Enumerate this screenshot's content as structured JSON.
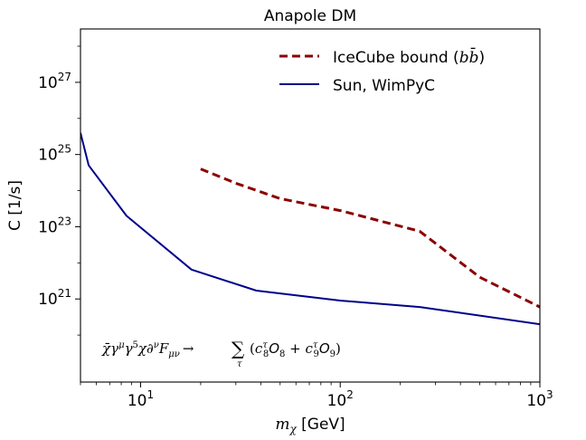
{
  "chart_data": {
    "type": "line",
    "title": "Anapole DM",
    "xlabel": {
      "main": "m",
      "sub": "χ",
      "unit": " [GeV]"
    },
    "ylabel": "C [1/s]",
    "xscale": "log",
    "yscale": "log",
    "xlim": [
      5,
      1000
    ],
    "ylim": [
      5e+18,
      3e+28
    ],
    "grid": false,
    "legend_position": "top-right",
    "x_ticks": [
      {
        "value": 10,
        "base": "10",
        "exp": "1"
      },
      {
        "value": 100,
        "base": "10",
        "exp": "2"
      },
      {
        "value": 1000,
        "base": "10",
        "exp": "3"
      }
    ],
    "y_ticks": [
      {
        "value": 1e+21,
        "base": "10",
        "exp": "21"
      },
      {
        "value": 1e+23,
        "base": "10",
        "exp": "23"
      },
      {
        "value": 1e+25,
        "base": "10",
        "exp": "25"
      },
      {
        "value": 1e+27,
        "base": "10",
        "exp": "27"
      }
    ],
    "series": [
      {
        "name": "IceCube bound (bb̄)",
        "legend_text": "IceCube bound (",
        "legend_math": "bb̄",
        "legend_close": ")",
        "color": "#8b0000",
        "style": "dashed",
        "x": [
          20,
          30,
          50,
          100,
          250,
          500,
          1000
        ],
        "y": [
          4e+24,
          1.6e+24,
          6e+23,
          2.8e+23,
          7.5e+22,
          4e+21,
          6e+20
        ]
      },
      {
        "name": "Sun, WimPyC",
        "legend_text": "Sun, WimPyC",
        "color": "#00008b",
        "style": "solid",
        "x": [
          5,
          5.5,
          8.5,
          18,
          38,
          100,
          250,
          1000
        ],
        "y": [
          4e+25,
          5e+24,
          2e+23,
          6.5e+21,
          1.7e+21,
          9e+20,
          6e+20,
          2e+20
        ]
      }
    ],
    "annotation": {
      "lhs": "χ̄γ",
      "lhs_sup1": "μ",
      "mid1": "γ",
      "mid1_sup": "5",
      "mid2": "χ∂",
      "mid2_sup": "ν",
      "mid3": "F",
      "mid3_sub": "μν",
      "arrow": "→",
      "sum": "∑",
      "sum_sub": "τ",
      "rhs_open": "(",
      "c1": "c",
      "c1_sub": "8",
      "c1_sup": "τ",
      "o1": "O",
      "o1_sub": "8",
      "plus": " + ",
      "c2": "c",
      "c2_sub": "9",
      "c2_sup": "τ",
      "o2": "O",
      "o2_sub": "9",
      "rhs_close": ")"
    }
  }
}
